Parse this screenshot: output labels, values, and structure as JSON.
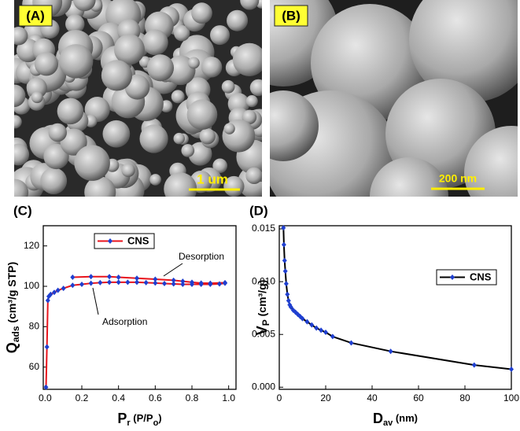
{
  "images": [
    {
      "label": "(A)",
      "scale_bar": "1 um"
    },
    {
      "label": "(B)",
      "scale_bar": "200 nm"
    }
  ],
  "chart_data": [
    {
      "type": "line",
      "label": "(C)",
      "ylabel": [
        "Q",
        "ads",
        " (cm³/g STP)"
      ],
      "xlabel": [
        "P",
        "r",
        " (P/P",
        "o",
        ")"
      ],
      "annotations": [
        "Desorption",
        "Adsorption"
      ],
      "xlim": [
        -0.01,
        1.04
      ],
      "ylim": [
        49,
        130
      ],
      "xticks": [
        {
          "value": 0,
          "label": "0.0"
        },
        0.2,
        0.4,
        0.6,
        0.8,
        {
          "value": 1,
          "label": "1.0"
        }
      ],
      "yticks": [
        60,
        80,
        100,
        120
      ],
      "series": [
        {
          "name": "CNS",
          "color": "#e8141c",
          "marker_color": "#1f3fd0",
          "x": [
            0.005,
            0.01,
            0.015,
            0.02,
            0.03,
            0.05,
            0.07,
            0.1,
            0.15,
            0.2,
            0.25,
            0.3,
            0.35,
            0.4,
            0.45,
            0.5,
            0.55,
            0.6,
            0.65,
            0.7,
            0.75,
            0.8,
            0.85,
            0.9,
            0.95,
            0.98,
            0.98,
            0.9,
            0.85,
            0.8,
            0.75,
            0.7,
            0.6,
            0.5,
            0.4,
            0.35,
            0.25,
            0.15
          ],
          "values": [
            50,
            70,
            93,
            95,
            96,
            97,
            98,
            99,
            100.5,
            101,
            101.5,
            101.8,
            102,
            102,
            102,
            102,
            101.8,
            101.6,
            101.4,
            101.2,
            101,
            101,
            101,
            101,
            101.2,
            101.5,
            101.8,
            101.5,
            101.6,
            102,
            102.5,
            103,
            103.5,
            104,
            104.5,
            104.8,
            104.8,
            104.5
          ]
        }
      ]
    },
    {
      "type": "line",
      "label": "(D)",
      "ylabel": [
        "V",
        "P",
        "  (cm³/g)"
      ],
      "xlabel": [
        "D",
        "av",
        " (nm)"
      ],
      "xlim": [
        0,
        100
      ],
      "ylim": [
        -0.0002,
        0.0153
      ],
      "xticks": [
        0,
        20,
        40,
        60,
        80,
        100
      ],
      "yticks": [
        {
          "value": 0,
          "label": "0.000"
        },
        {
          "value": 0.005,
          "label": "0.005"
        },
        {
          "value": 0.01,
          "label": "0.010"
        },
        {
          "value": 0.015,
          "label": "0.015"
        }
      ],
      "series": [
        {
          "name": "CNS",
          "color": "#000000",
          "marker_color": "#1f3fd0",
          "x": [
            1.8,
            2,
            2.3,
            2.6,
            3,
            3.5,
            4,
            4.5,
            5,
            6,
            7,
            8,
            9,
            10,
            12,
            14,
            16,
            18,
            20,
            23,
            31,
            48,
            84,
            100
          ],
          "values": [
            0.0151,
            0.0135,
            0.012,
            0.011,
            0.0098,
            0.0088,
            0.0082,
            0.0078,
            0.0076,
            0.0073,
            0.0071,
            0.0069,
            0.0067,
            0.0065,
            0.0062,
            0.0059,
            0.0056,
            0.0054,
            0.0052,
            0.0048,
            0.0042,
            0.0034,
            0.0021,
            0.0017
          ]
        }
      ]
    }
  ]
}
